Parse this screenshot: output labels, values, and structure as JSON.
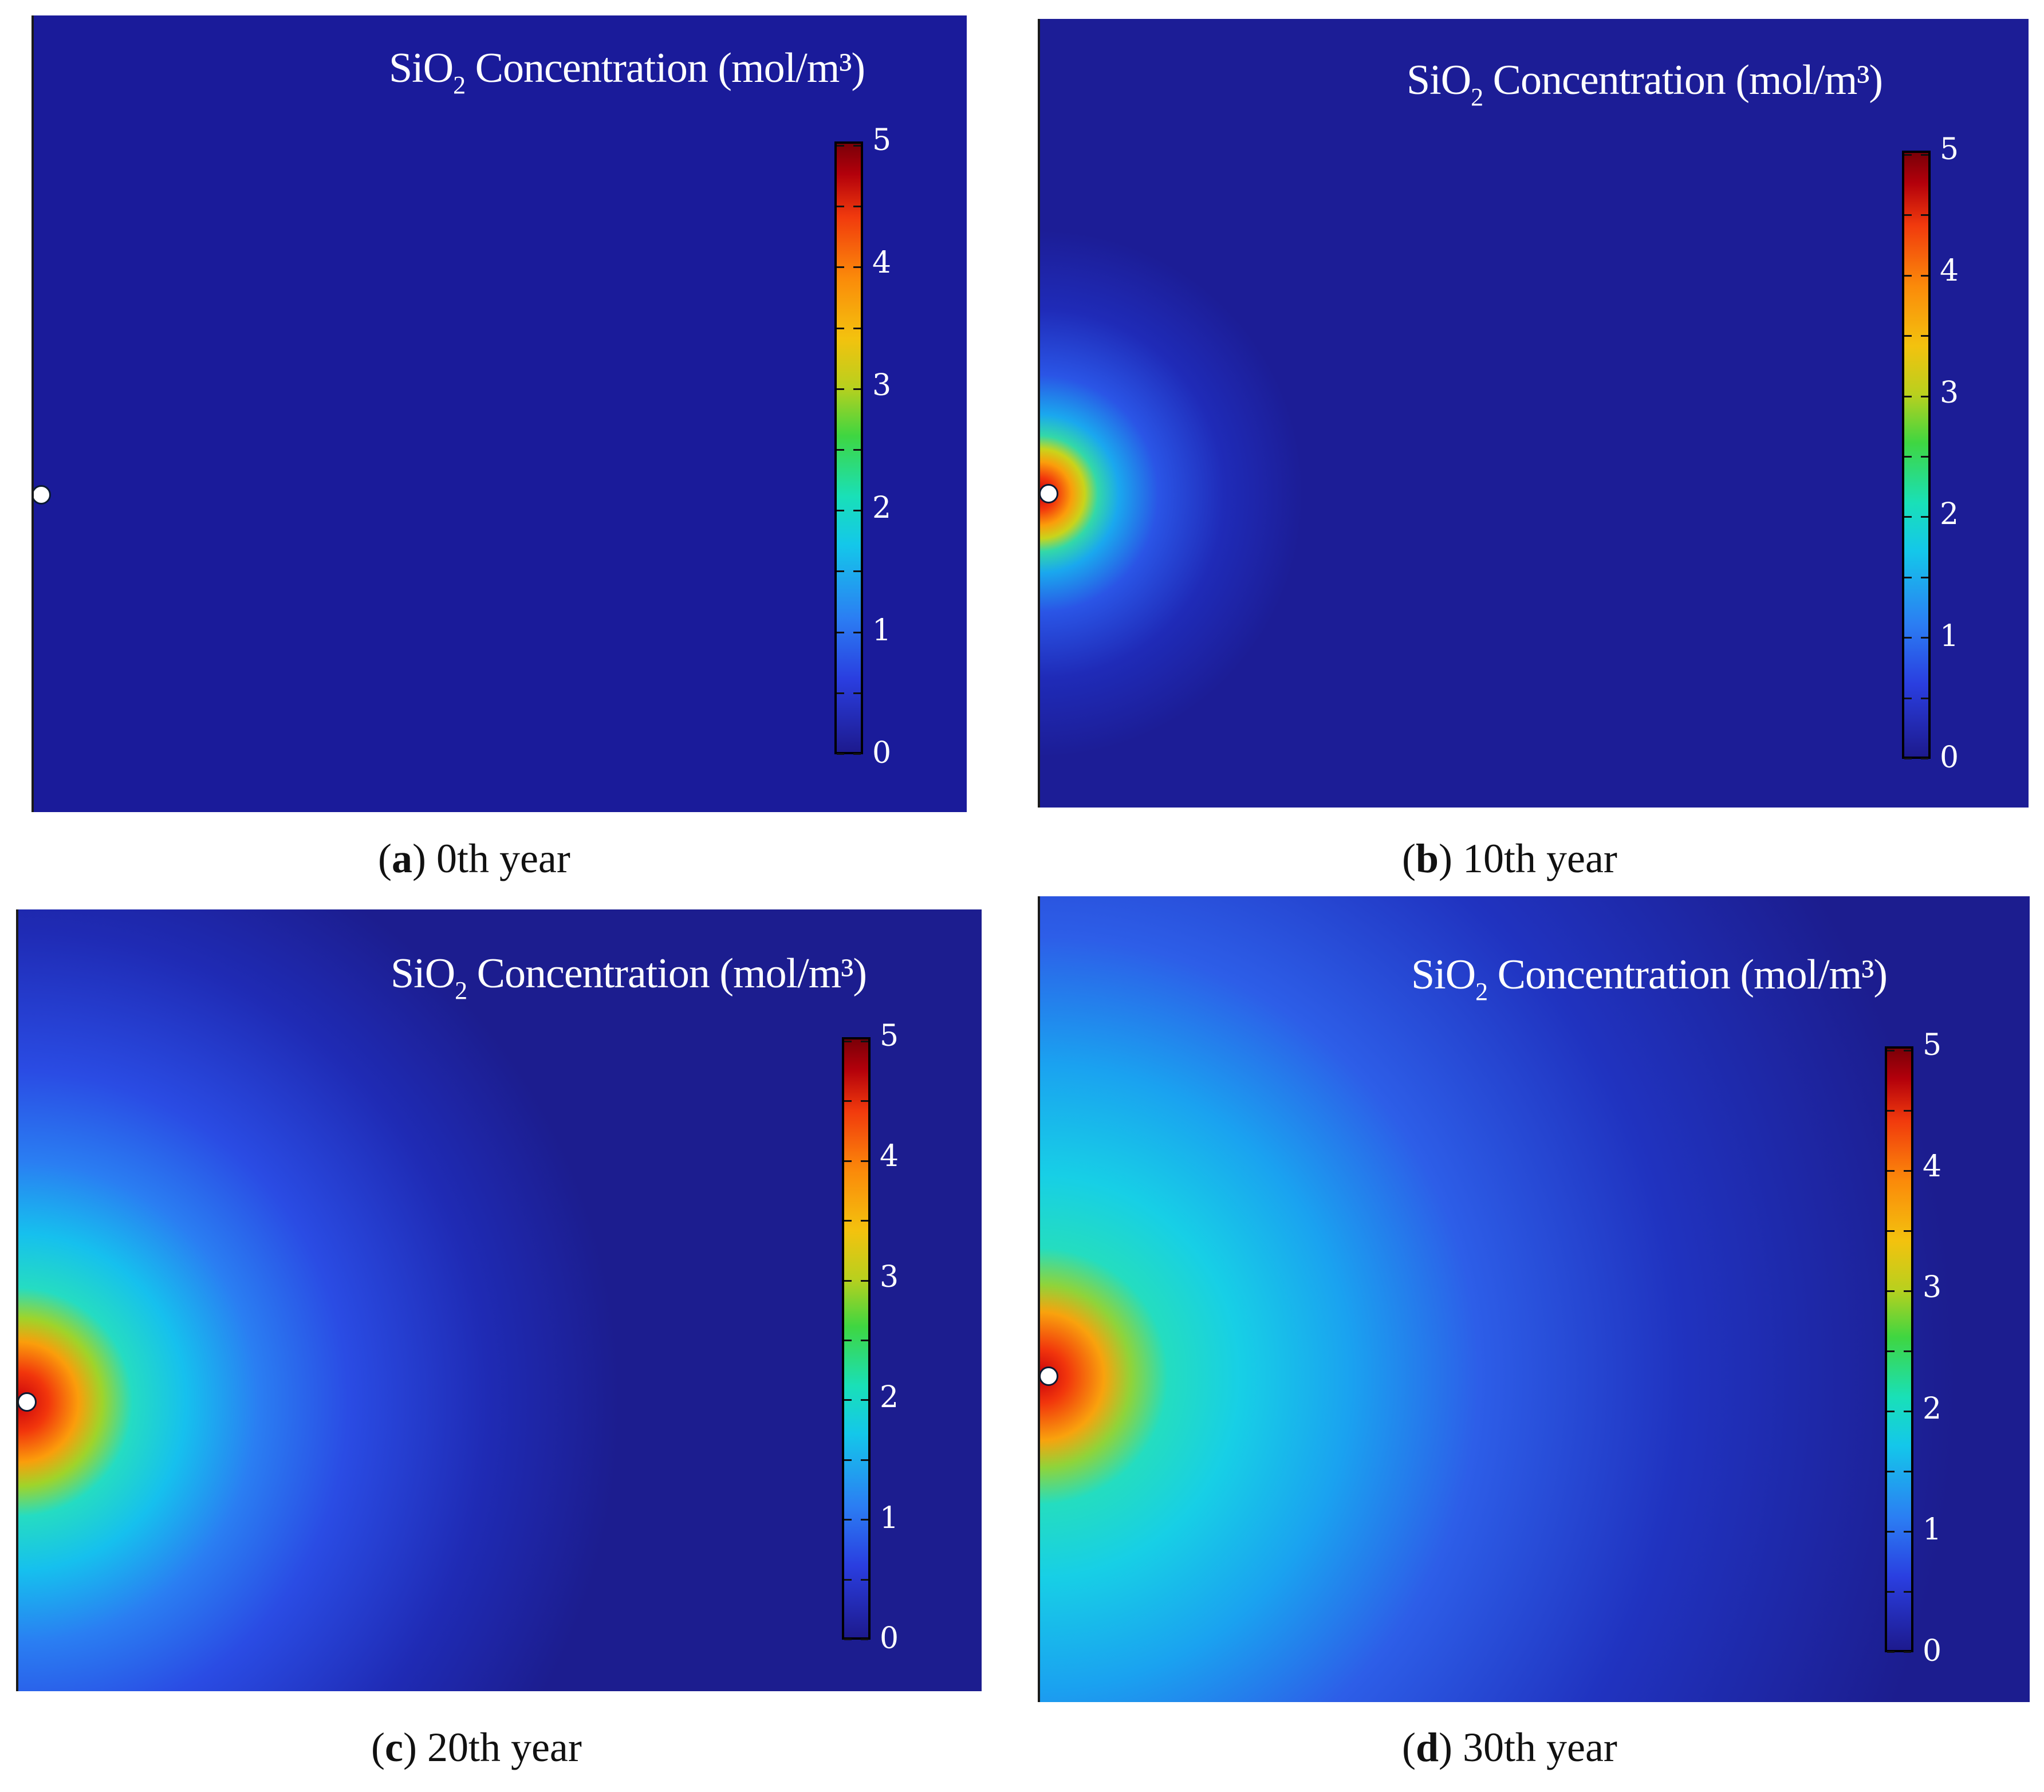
{
  "chart_data": [
    {
      "type": "heatmap",
      "panel_letter": "a",
      "caption": "0th year",
      "colorbar": {
        "title_main": "SiO",
        "title_sub": "2",
        "title_rest": " Concentration (mol/m³)",
        "min": 0,
        "max": 5,
        "ticks": [
          "0",
          "1",
          "2",
          "3",
          "4",
          "5"
        ]
      },
      "plume_spread": 0.0
    },
    {
      "type": "heatmap",
      "panel_letter": "b",
      "caption": "10th year",
      "colorbar": {
        "title_main": "SiO",
        "title_sub": "2",
        "title_rest": " Concentration (mol/m³)",
        "min": 0,
        "max": 5,
        "ticks": [
          "0",
          "1",
          "2",
          "3",
          "4",
          "5"
        ]
      },
      "plume_spread": 0.33
    },
    {
      "type": "heatmap",
      "panel_letter": "c",
      "caption": "20th year",
      "colorbar": {
        "title_main": "SiO",
        "title_sub": "2",
        "title_rest": " Concentration (mol/m³)",
        "min": 0,
        "max": 5,
        "ticks": [
          "0",
          "1",
          "2",
          "3",
          "4",
          "5"
        ]
      },
      "plume_spread": 0.66
    },
    {
      "type": "heatmap",
      "panel_letter": "d",
      "caption": "30th year",
      "colorbar": {
        "title_main": "SiO",
        "title_sub": "2",
        "title_rest": " Concentration (mol/m³)",
        "min": 0,
        "max": 5,
        "ticks": [
          "0",
          "1",
          "2",
          "3",
          "4",
          "5"
        ]
      },
      "plume_spread": 1.0
    }
  ]
}
